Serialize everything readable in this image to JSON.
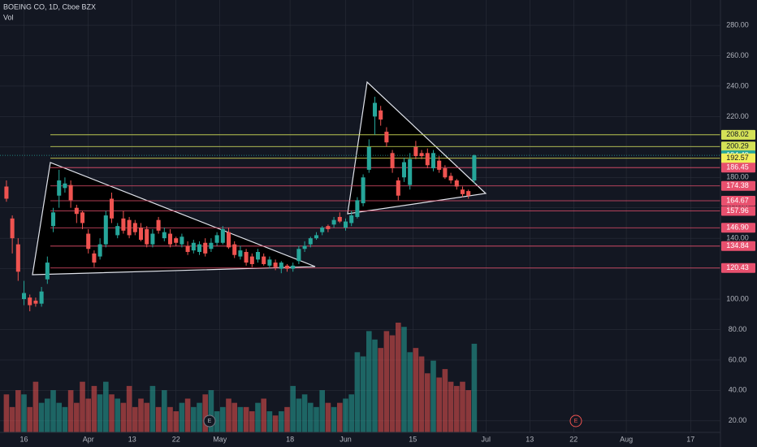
{
  "chart_data": {
    "type": "candlestick",
    "title": "BOEING CO, 1D, Cboe BZX",
    "volume_label": "Vol",
    "annotations": [
      "E",
      "E"
    ],
    "up_color": "#26a69a",
    "down_color": "#ef5350",
    "grid": true,
    "xlim": [
      -1.1,
      122.1
    ],
    "xticks": [
      {
        "value": 3,
        "label": "16"
      },
      {
        "value": 14,
        "label": "Apr"
      },
      {
        "value": 21.5,
        "label": "13"
      },
      {
        "value": 29,
        "label": "22"
      },
      {
        "value": 36.5,
        "label": "May"
      },
      {
        "value": 48.5,
        "label": "18"
      },
      {
        "value": 58,
        "label": "Jun"
      },
      {
        "value": 69.5,
        "label": "15"
      },
      {
        "value": 82,
        "label": "Jul"
      },
      {
        "value": 89.5,
        "label": "13"
      },
      {
        "value": 97,
        "label": "22"
      },
      {
        "value": 106,
        "label": "Aug"
      },
      {
        "value": 117,
        "label": "17"
      }
    ],
    "ylim": [
      12.4,
      296.6
    ],
    "yticks": [
      {
        "value": 20,
        "label": "20.00"
      },
      {
        "value": 40,
        "label": "40.00"
      },
      {
        "value": 60,
        "label": "60.00"
      },
      {
        "value": 80,
        "label": "80.00"
      },
      {
        "value": 100,
        "label": "100.00"
      },
      {
        "value": 120,
        "label": "120.00"
      },
      {
        "value": 140,
        "label": "140.00"
      },
      {
        "value": 160,
        "label": "160.00"
      },
      {
        "value": 180,
        "label": "180.00"
      },
      {
        "value": 200,
        "label": "200.00"
      },
      {
        "value": 220,
        "label": "220.00"
      },
      {
        "value": 240,
        "label": "240.00"
      },
      {
        "value": 260,
        "label": "260.00"
      },
      {
        "value": 280,
        "label": "280.00"
      }
    ],
    "open": [
      174,
      153,
      136,
      100,
      101,
      99,
      97,
      113,
      148,
      168,
      173,
      175,
      160,
      157,
      143,
      130,
      128,
      136,
      166,
      142,
      153,
      152,
      150,
      147,
      146,
      136,
      152,
      140,
      143,
      140,
      136,
      135,
      132,
      131,
      137,
      133,
      137,
      137,
      144,
      136,
      128,
      131,
      128,
      126,
      128,
      122,
      124,
      120,
      122,
      120,
      125,
      133,
      136,
      140,
      144,
      148,
      149,
      154,
      147,
      150,
      154,
      163,
      185,
      220,
      224,
      210,
      196,
      178,
      180,
      175,
      200,
      196,
      196,
      186,
      191,
      186,
      181,
      178,
      172,
      171,
      178
    ],
    "high": [
      178,
      155,
      140,
      112,
      103,
      101,
      108,
      128,
      160,
      185,
      180,
      178,
      162,
      158,
      146,
      132,
      140,
      158,
      170,
      150,
      158,
      154,
      152,
      150,
      148,
      146,
      154,
      147,
      146,
      141,
      143,
      138,
      139,
      138,
      140,
      140,
      144,
      148,
      147,
      138,
      135,
      133,
      130,
      133,
      130,
      128,
      126,
      125,
      123,
      124,
      135,
      138,
      141,
      144,
      148,
      149,
      154,
      157,
      153,
      158,
      167,
      182,
      205,
      233,
      227,
      213,
      198,
      180,
      193,
      196,
      204,
      198,
      199,
      198,
      194,
      188,
      183,
      179,
      174,
      172,
      195
    ],
    "low": [
      164,
      130,
      112,
      96,
      92,
      95,
      95,
      110,
      144,
      160,
      170,
      160,
      150,
      146,
      130,
      121,
      126,
      134,
      150,
      140,
      143,
      140,
      142,
      138,
      134,
      134,
      143,
      138,
      134,
      135,
      134,
      129,
      130,
      129,
      128,
      131,
      135,
      136,
      133,
      127,
      126,
      122,
      121,
      124,
      122,
      120,
      119,
      117,
      118,
      118,
      123,
      131,
      134,
      139,
      142,
      144,
      147,
      150,
      145,
      148,
      153,
      161,
      183,
      208,
      214,
      200,
      183,
      165,
      177,
      172,
      192,
      192,
      186,
      184,
      183,
      179,
      176,
      172,
      167,
      166,
      176
    ],
    "close": [
      166,
      140,
      118,
      104,
      96,
      97,
      105,
      124,
      157,
      178,
      176,
      165,
      156,
      150,
      133,
      124,
      136,
      155,
      153,
      148,
      145,
      142,
      144,
      139,
      136,
      143,
      145,
      144,
      136,
      137,
      141,
      131,
      137,
      136,
      130,
      137,
      142,
      146,
      134,
      129,
      132,
      124,
      123,
      131,
      123,
      126,
      121,
      124,
      120,
      122,
      133,
      135,
      140,
      142,
      147,
      146,
      152,
      151,
      151,
      155,
      165,
      180,
      200,
      229,
      218,
      203,
      186,
      168,
      190,
      192,
      194,
      194,
      188,
      196,
      185,
      180,
      178,
      174,
      169,
      168,
      194.49
    ],
    "volume": [
      45,
      30,
      50,
      45,
      30,
      60,
      35,
      40,
      50,
      35,
      30,
      50,
      35,
      60,
      40,
      55,
      45,
      60,
      45,
      40,
      35,
      55,
      30,
      40,
      35,
      55,
      30,
      50,
      30,
      25,
      35,
      40,
      30,
      35,
      45,
      50,
      25,
      30,
      40,
      35,
      30,
      30,
      25,
      35,
      40,
      25,
      20,
      25,
      30,
      55,
      40,
      45,
      35,
      30,
      50,
      35,
      30,
      35,
      40,
      45,
      95,
      90,
      120,
      110,
      100,
      120,
      115,
      130,
      125,
      95,
      100,
      90,
      70,
      85,
      65,
      75,
      60,
      55,
      60,
      50,
      105
    ],
    "levels": [
      {
        "value": 208.02,
        "color": "#d4e157"
      },
      {
        "value": 200.29,
        "color": "#d4e157"
      },
      {
        "value": 194.49,
        "color": "#26a69a",
        "style": "dotted"
      },
      {
        "value": 192.57,
        "color": "#f2ee5a"
      },
      {
        "value": 186.45,
        "color": "#e8506e"
      },
      {
        "value": 174.38,
        "color": "#e8506e"
      },
      {
        "value": 164.67,
        "color": "#e8506e"
      },
      {
        "value": 157.96,
        "color": "#e8506e"
      },
      {
        "value": 146.9,
        "label": "146.90",
        "color": "#e8506e"
      },
      {
        "value": 134.84,
        "color": "#e8506e"
      },
      {
        "value": 120.43,
        "color": "#e8506e"
      }
    ]
  }
}
